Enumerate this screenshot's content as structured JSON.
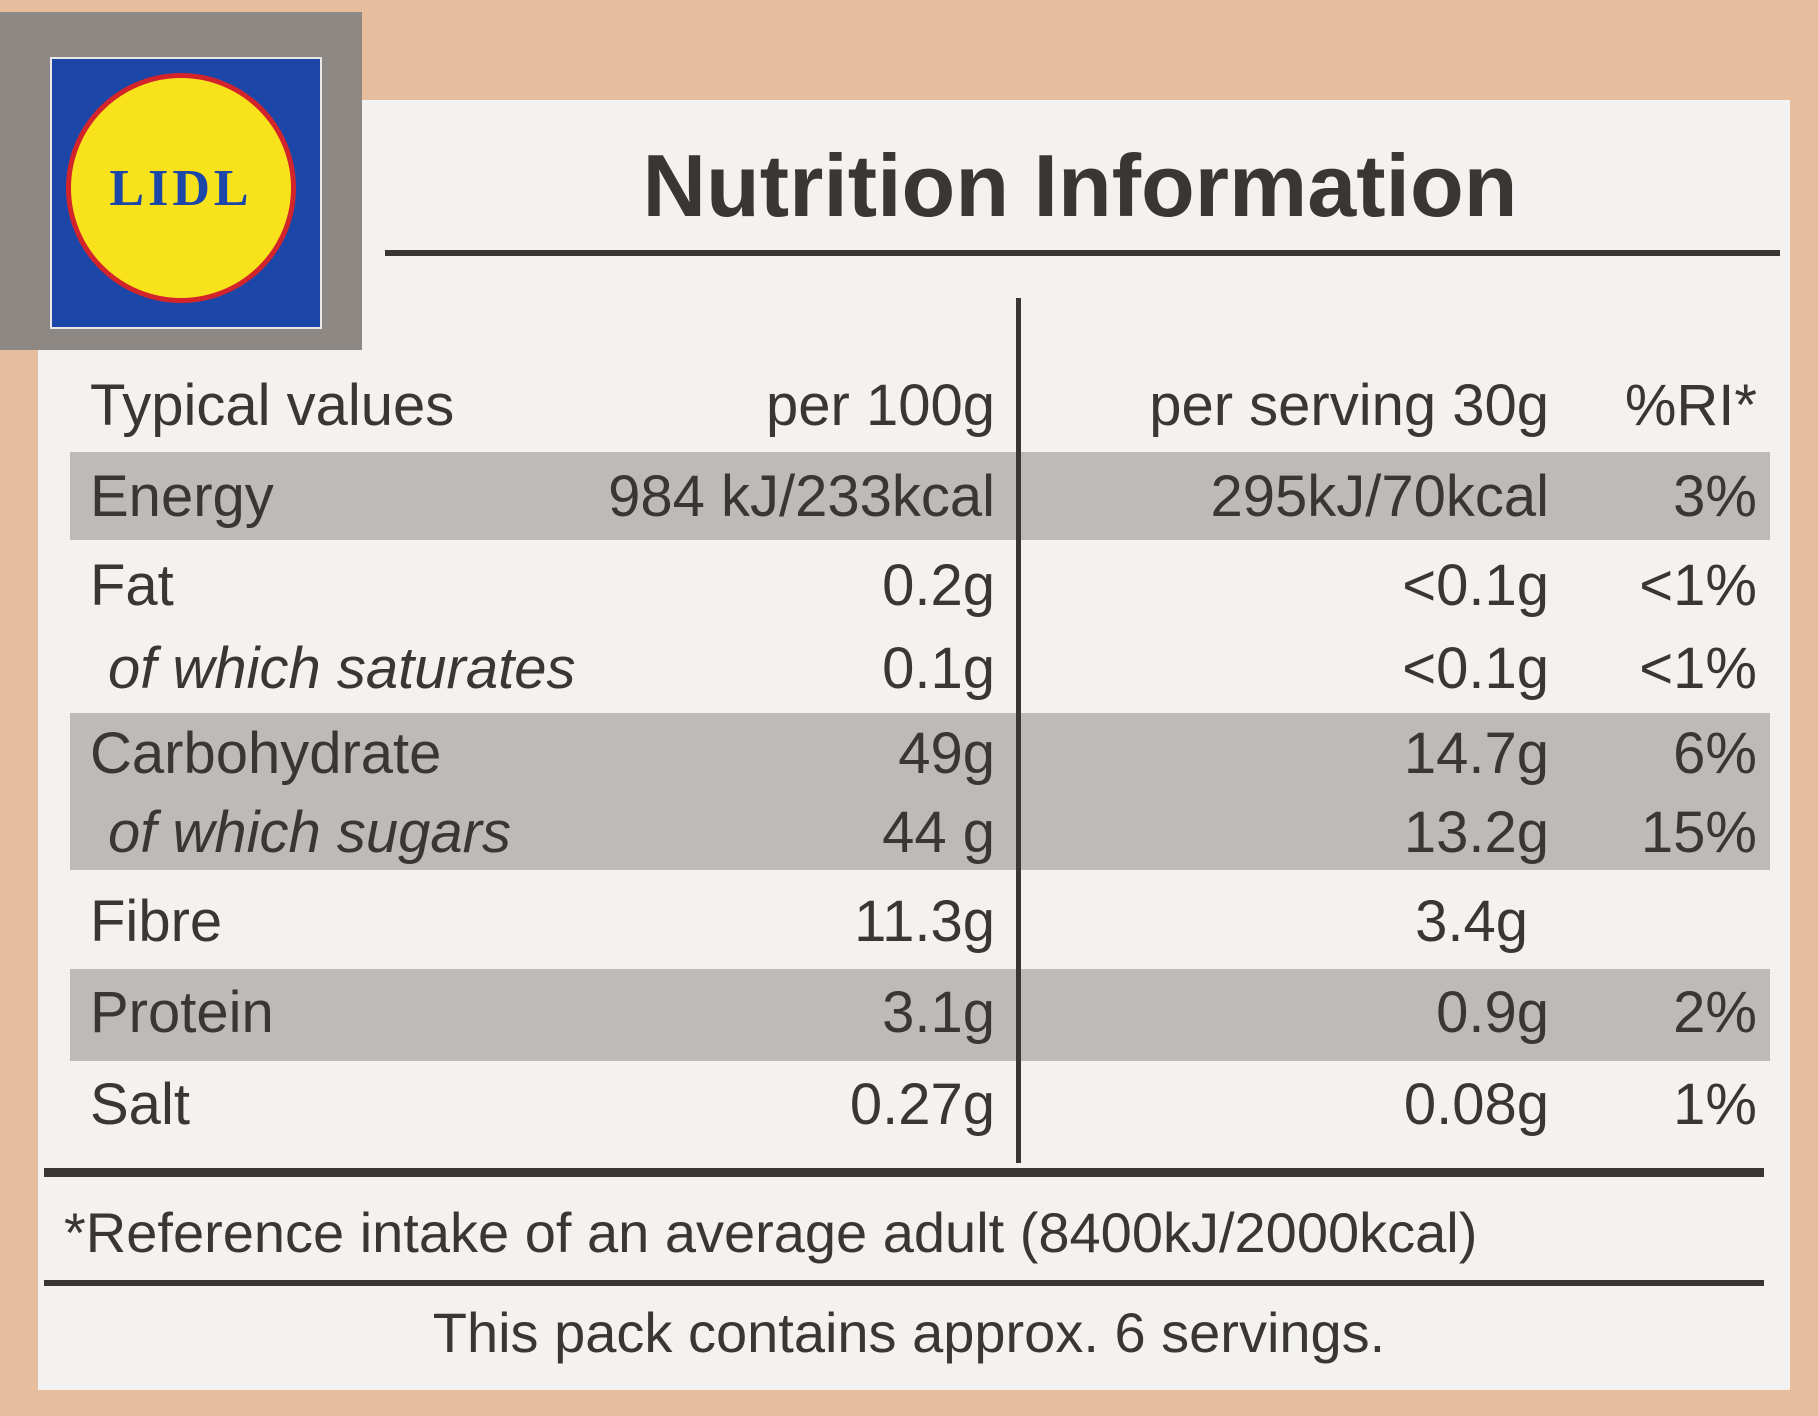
{
  "logo": {
    "text": "LIDL"
  },
  "header": {
    "title": "Nutrition Information"
  },
  "table": {
    "columns": [
      "Typical values",
      "per 100g",
      "per serving 30g",
      "%RI*"
    ],
    "rows": [
      [
        "Energy",
        "984 kJ/233kcal",
        "295kJ/70kcal",
        "3%"
      ],
      [
        "Fat",
        "0.2g",
        "<0.1g",
        "<1%"
      ],
      [
        "of which saturates",
        "0.1g",
        "<0.1g",
        "<1%"
      ],
      [
        "Carbohydrate",
        "49g",
        "14.7g",
        "6%"
      ],
      [
        "of which sugars",
        "44 g",
        "13.2g",
        "15%"
      ],
      [
        "Fibre",
        "11.3g",
        "3.4g"
      ],
      [
        "Protein",
        "3.1g",
        "0.9g",
        "2%"
      ],
      [
        "Salt",
        "0.27g",
        "0.08g",
        "1%"
      ]
    ]
  },
  "footer": {
    "note": "*Reference intake of an average adult (8400kJ/2000kcal)",
    "servings": "This pack contains approx. 6 servings."
  }
}
